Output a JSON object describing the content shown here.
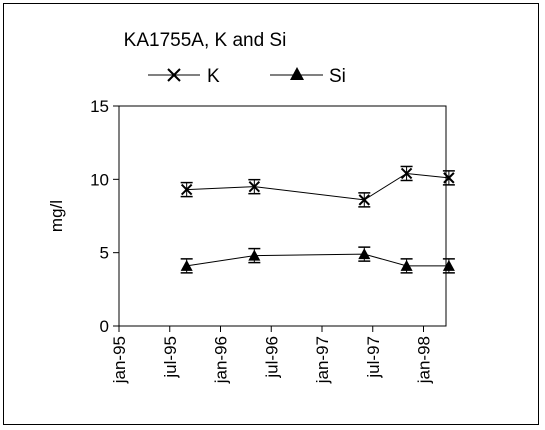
{
  "chart_data": {
    "type": "line",
    "title": "KA1755A, K and Si",
    "ylabel": "mg/l",
    "xlabel": "",
    "ylim": [
      0,
      15
    ],
    "yticks": [
      "0",
      "5",
      "10",
      "15"
    ],
    "xticks": [
      "jan-95",
      "jul-95",
      "jan-96",
      "jul-96",
      "jan-97",
      "jul-97",
      "jan-98"
    ],
    "grid": false,
    "legend_position": "top",
    "series": [
      {
        "name": "K",
        "marker": "x-with-error-bars",
        "x": [
          "1995-09",
          "1996-05",
          "1997-06",
          "1997-11",
          "1998-04"
        ],
        "values": [
          9.3,
          9.5,
          8.6,
          10.4,
          10.1
        ],
        "color": "#000000"
      },
      {
        "name": "Si",
        "marker": "filled-triangle",
        "x": [
          "1995-09",
          "1996-05",
          "1997-06",
          "1997-11",
          "1998-04"
        ],
        "values": [
          4.1,
          4.8,
          4.9,
          4.1,
          4.1
        ],
        "color": "#000000"
      }
    ]
  }
}
